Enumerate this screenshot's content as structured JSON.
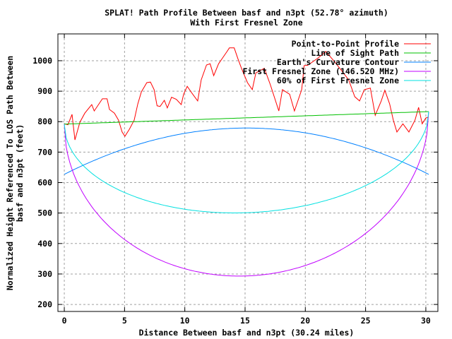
{
  "chart_data": {
    "type": "line",
    "title": "SPLAT! Path Profile Between basf and n3pt (52.78° azimuth)",
    "subtitle": "With First Fresnel Zone",
    "xlabel": "Distance Between basf and n3pt (30.24 miles)",
    "ylabel_lines": [
      "Normalized Height Referenced To LOS Path Between",
      "basf and n3pt (feet)"
    ],
    "xlim": [
      -0.53,
      31.0
    ],
    "ylim": [
      177,
      1088
    ],
    "xticks": [
      0,
      5,
      10,
      15,
      20,
      25,
      30
    ],
    "yticks": [
      200,
      300,
      400,
      500,
      600,
      700,
      800,
      900,
      1000
    ],
    "grid": true,
    "legend_position": "top-right",
    "path_length": 30.24,
    "series": [
      {
        "name": "Point-to-Point Profile",
        "color": "#ff0000",
        "x": [
          0,
          0.3,
          0.64,
          0.88,
          1.29,
          1.7,
          2.28,
          2.48,
          3.16,
          3.55,
          3.75,
          4.16,
          4.5,
          4.8,
          5.03,
          5.4,
          5.8,
          6.1,
          6.4,
          6.85,
          7.15,
          7.45,
          7.7,
          7.95,
          8.3,
          8.55,
          8.9,
          9.3,
          9.7,
          9.9,
          10.2,
          10.6,
          11.07,
          11.36,
          11.8,
          12.1,
          12.4,
          12.8,
          13.1,
          13.5,
          13.7,
          14.1,
          14.4,
          14.7,
          15.2,
          15.6,
          15.9,
          16.6,
          17.1,
          17.8,
          18.1,
          18.7,
          19.1,
          19.7,
          19.9,
          20.2,
          21.0,
          21.7,
          22.4,
          23.0,
          23.6,
          24.1,
          24.5,
          24.9,
          25.4,
          25.8,
          26.3,
          26.6,
          27.0,
          27.3,
          27.6,
          28.1,
          28.6,
          29.1,
          29.4,
          29.7,
          30.0,
          30.24
        ],
        "y": [
          793,
          790,
          824,
          740,
          798,
          828,
          856,
          835,
          875,
          875,
          840,
          828,
          805,
          766,
          752,
          775,
          805,
          858,
          898,
          928,
          930,
          905,
          852,
          850,
          870,
          845,
          880,
          873,
          856,
          890,
          916,
          893,
          868,
          937,
          986,
          990,
          951,
          990,
          1007,
          1030,
          1042,
          1042,
          1007,
          975,
          928,
          905,
          960,
          975,
          921,
          835,
          905,
          890,
          835,
          905,
          984,
          985,
          1007,
          1030,
          998,
          968,
          937,
          882,
          868,
          905,
          910,
          821,
          868,
          903,
          858,
          805,
          766,
          793,
          766,
          805,
          847,
          793,
          812,
          815
        ]
      },
      {
        "name": "Line of Sight Path",
        "color": "#00c000",
        "kind": "line",
        "y_start": 792,
        "y_end": 833
      },
      {
        "name": "Earth's Curvature Contour",
        "color": "#0080ff",
        "kind": "parabola",
        "edge": 627,
        "center": 779
      },
      {
        "name": "First Fresnel Zone (146.520 MHz)",
        "color": "#c000ff",
        "kind": "fresnel",
        "fraction": 1.0,
        "center_radius": 519
      },
      {
        "name": "60% of First Fresnel Zone",
        "color": "#00e0e0",
        "kind": "fresnel",
        "fraction": 0.6,
        "center_radius": 519
      }
    ]
  }
}
